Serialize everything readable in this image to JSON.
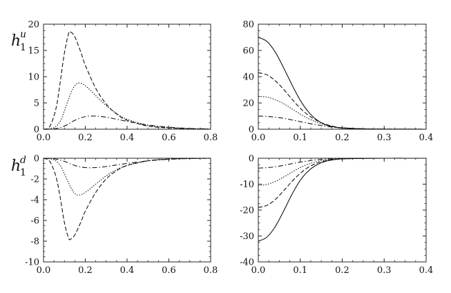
{
  "figure": {
    "row_labels": [
      {
        "base": "h",
        "sub": "1",
        "sup": "u"
      },
      {
        "base": "h",
        "sub": "1",
        "sup": "d"
      }
    ]
  },
  "chart_data": [
    {
      "type": "line",
      "row": 0,
      "col": 0,
      "xlim": [
        0,
        0.8
      ],
      "ylim": [
        0,
        20
      ],
      "xticks": [
        0,
        0.2,
        0.4,
        0.6,
        0.8
      ],
      "yticks": [
        0,
        5,
        10,
        15,
        20
      ],
      "xtick_labels": [
        "0.0",
        "0.2",
        "0.4",
        "0.6",
        "0.8"
      ],
      "ytick_labels": [
        "0",
        "5",
        "10",
        "15",
        "20"
      ],
      "series": [
        {
          "style": "dashed",
          "x": [
            0,
            0.03,
            0.06,
            0.08,
            0.1,
            0.12,
            0.13,
            0.15,
            0.18,
            0.2,
            0.25,
            0.3,
            0.35,
            0.4,
            0.5,
            0.6,
            0.7,
            0.8
          ],
          "y": [
            0,
            0.5,
            4,
            9,
            14.5,
            18.2,
            18.5,
            17.6,
            14.5,
            12.2,
            7.8,
            4.8,
            2.9,
            1.7,
            0.6,
            0.25,
            0.1,
            0.03
          ]
        },
        {
          "style": "dotted",
          "x": [
            0,
            0.05,
            0.08,
            0.1,
            0.13,
            0.15,
            0.17,
            0.2,
            0.25,
            0.3,
            0.35,
            0.4,
            0.5,
            0.6,
            0.7,
            0.8
          ],
          "y": [
            0,
            0.3,
            1.5,
            3.5,
            6.8,
            8.3,
            8.8,
            8.3,
            6.4,
            4.5,
            3.0,
            1.9,
            0.75,
            0.3,
            0.1,
            0.03
          ]
        },
        {
          "style": "dashdot",
          "x": [
            0,
            0.05,
            0.1,
            0.15,
            0.2,
            0.25,
            0.3,
            0.35,
            0.4,
            0.5,
            0.6,
            0.7,
            0.8
          ],
          "y": [
            0,
            0.05,
            0.6,
            1.7,
            2.4,
            2.5,
            2.3,
            1.9,
            1.5,
            0.8,
            0.4,
            0.15,
            0.05
          ]
        }
      ]
    },
    {
      "type": "line",
      "row": 0,
      "col": 1,
      "xlim": [
        0,
        0.4
      ],
      "ylim": [
        0,
        80
      ],
      "xticks": [
        0,
        0.1,
        0.2,
        0.3,
        0.4
      ],
      "yticks": [
        0,
        20,
        40,
        60,
        80
      ],
      "xtick_labels": [
        "0.0",
        "0.1",
        "0.2",
        "0.3",
        "0.4"
      ],
      "ytick_labels": [
        "0",
        "20",
        "40",
        "60",
        "80"
      ],
      "series": [
        {
          "style": "solid",
          "x": [
            0,
            0.02,
            0.04,
            0.06,
            0.08,
            0.1,
            0.12,
            0.14,
            0.16,
            0.18,
            0.2,
            0.25,
            0.3,
            0.4
          ],
          "y": [
            70,
            67,
            59,
            47,
            34,
            22,
            13,
            7,
            3.5,
            1.8,
            0.9,
            0.2,
            0.05,
            0
          ]
        },
        {
          "style": "dashed",
          "x": [
            0,
            0.02,
            0.04,
            0.06,
            0.08,
            0.1,
            0.12,
            0.14,
            0.16,
            0.18,
            0.2,
            0.25,
            0.3,
            0.4
          ],
          "y": [
            43,
            41.5,
            37,
            30.5,
            23,
            16,
            10.5,
            6.5,
            3.8,
            2.1,
            1.1,
            0.3,
            0.08,
            0
          ]
        },
        {
          "style": "dotted",
          "x": [
            0,
            0.02,
            0.04,
            0.06,
            0.08,
            0.1,
            0.12,
            0.14,
            0.16,
            0.18,
            0.2,
            0.25,
            0.3,
            0.4
          ],
          "y": [
            25,
            24.5,
            22.5,
            19.5,
            15.5,
            11.5,
            8,
            5.2,
            3.2,
            1.9,
            1.1,
            0.3,
            0.08,
            0
          ]
        },
        {
          "style": "dashdot",
          "x": [
            0,
            0.02,
            0.04,
            0.06,
            0.08,
            0.1,
            0.12,
            0.14,
            0.16,
            0.18,
            0.2,
            0.25,
            0.3,
            0.4
          ],
          "y": [
            10,
            9.8,
            9.2,
            8.3,
            7.1,
            5.8,
            4.5,
            3.3,
            2.3,
            1.5,
            1.0,
            0.35,
            0.1,
            0
          ]
        }
      ]
    },
    {
      "type": "line",
      "row": 1,
      "col": 0,
      "xlim": [
        0,
        0.8
      ],
      "ylim": [
        -10,
        0
      ],
      "xticks": [
        0,
        0.2,
        0.4,
        0.6,
        0.8
      ],
      "yticks": [
        -10,
        -8,
        -6,
        -4,
        -2,
        0
      ],
      "xtick_labels": [
        "0.0",
        "0.2",
        "0.4",
        "0.6",
        "0.8"
      ],
      "ytick_labels": [
        "-10",
        "-8",
        "-6",
        "-4",
        "-2",
        "0"
      ],
      "series": [
        {
          "style": "dashed",
          "x": [
            0,
            0.03,
            0.06,
            0.08,
            0.1,
            0.12,
            0.13,
            0.15,
            0.18,
            0.2,
            0.25,
            0.3,
            0.35,
            0.4,
            0.5,
            0.6,
            0.7,
            0.8
          ],
          "y": [
            0,
            -0.3,
            -1.8,
            -3.8,
            -6.2,
            -7.7,
            -7.8,
            -7.4,
            -6.1,
            -5.1,
            -3.3,
            -2.0,
            -1.2,
            -0.7,
            -0.25,
            -0.08,
            -0.02,
            0
          ]
        },
        {
          "style": "dotted",
          "x": [
            0,
            0.05,
            0.08,
            0.1,
            0.13,
            0.15,
            0.17,
            0.2,
            0.25,
            0.3,
            0.35,
            0.4,
            0.5,
            0.6,
            0.7,
            0.8
          ],
          "y": [
            0,
            -0.15,
            -0.7,
            -1.5,
            -2.8,
            -3.4,
            -3.55,
            -3.3,
            -2.5,
            -1.7,
            -1.1,
            -0.7,
            -0.25,
            -0.08,
            -0.02,
            0
          ]
        },
        {
          "style": "dashdot",
          "x": [
            0,
            0.05,
            0.1,
            0.15,
            0.2,
            0.25,
            0.3,
            0.35,
            0.4,
            0.5,
            0.6,
            0.7,
            0.8
          ],
          "y": [
            0,
            -0.05,
            -0.3,
            -0.7,
            -0.9,
            -0.9,
            -0.8,
            -0.65,
            -0.5,
            -0.25,
            -0.1,
            -0.03,
            0
          ]
        }
      ]
    },
    {
      "type": "line",
      "row": 1,
      "col": 1,
      "xlim": [
        0,
        0.4
      ],
      "ylim": [
        -40,
        0
      ],
      "xticks": [
        0,
        0.1,
        0.2,
        0.3,
        0.4
      ],
      "yticks": [
        -40,
        -30,
        -20,
        -10,
        0
      ],
      "xtick_labels": [
        "0.0",
        "0.1",
        "0.2",
        "0.3",
        "0.4"
      ],
      "ytick_labels": [
        "-40",
        "-30",
        "-20",
        "-10",
        "0"
      ],
      "series": [
        {
          "style": "solid",
          "x": [
            0,
            0.02,
            0.04,
            0.06,
            0.08,
            0.1,
            0.12,
            0.14,
            0.16,
            0.18,
            0.2,
            0.25,
            0.3,
            0.4
          ],
          "y": [
            -32,
            -30.5,
            -26.5,
            -20.5,
            -14,
            -8.5,
            -4.8,
            -2.5,
            -1.2,
            -0.55,
            -0.25,
            -0.05,
            0,
            0
          ]
        },
        {
          "style": "dashed",
          "x": [
            0,
            0.02,
            0.04,
            0.06,
            0.08,
            0.1,
            0.12,
            0.14,
            0.16,
            0.18,
            0.2,
            0.25,
            0.3,
            0.4
          ],
          "y": [
            -19,
            -18.2,
            -16,
            -12.6,
            -9,
            -5.8,
            -3.4,
            -1.9,
            -1.0,
            -0.5,
            -0.25,
            -0.05,
            0,
            0
          ]
        },
        {
          "style": "dotted",
          "x": [
            0,
            0.02,
            0.04,
            0.06,
            0.08,
            0.1,
            0.12,
            0.14,
            0.16,
            0.18,
            0.2,
            0.25,
            0.3,
            0.4
          ],
          "y": [
            -10.5,
            -10.1,
            -9.0,
            -7.3,
            -5.4,
            -3.6,
            -2.2,
            -1.3,
            -0.7,
            -0.35,
            -0.18,
            -0.04,
            0,
            0
          ]
        },
        {
          "style": "dashdot",
          "x": [
            0,
            0.02,
            0.04,
            0.06,
            0.08,
            0.1,
            0.12,
            0.14,
            0.16,
            0.18,
            0.2,
            0.25,
            0.3,
            0.4
          ],
          "y": [
            -3.8,
            -3.65,
            -3.3,
            -2.75,
            -2.1,
            -1.5,
            -1.0,
            -0.6,
            -0.35,
            -0.2,
            -0.1,
            -0.02,
            0,
            0
          ]
        }
      ]
    }
  ]
}
